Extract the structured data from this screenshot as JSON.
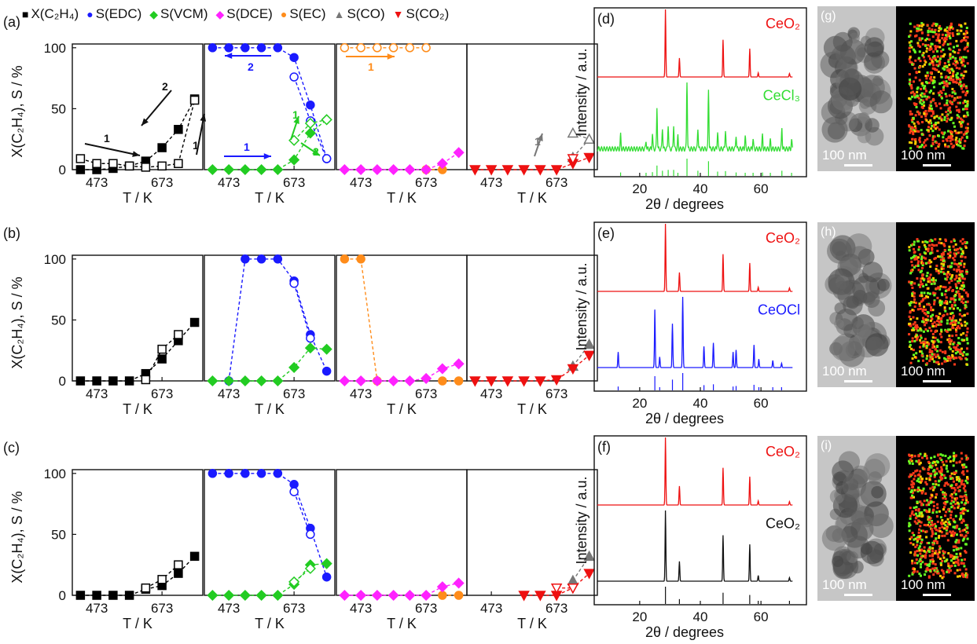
{
  "legend": [
    {
      "label": "X(C₂H₄)",
      "color": "#000000",
      "marker": "■"
    },
    {
      "label": "S(EDC)",
      "color": "#1a1aff",
      "marker": "●"
    },
    {
      "label": "S(VCM)",
      "color": "#22cc22",
      "marker": "◆"
    },
    {
      "label": "S(DCE)",
      "color": "#ff22ff",
      "marker": "◆"
    },
    {
      "label": "S(EC)",
      "color": "#ff8c1a",
      "marker": "●"
    },
    {
      "label": "S(CO)",
      "color": "#777777",
      "marker": "▲"
    },
    {
      "label": "S(CO₂)",
      "color": "#ee1111",
      "marker": "▼"
    }
  ],
  "colors": {
    "X": "#000000",
    "EDC": "#1a1aff",
    "VCM": "#22cc22",
    "DCE": "#ff22ff",
    "EC": "#ff8c1a",
    "CO": "#777777",
    "CO2": "#ee1111"
  },
  "row_labels": [
    "(a)",
    "(b)",
    "(c)"
  ],
  "ylabel": "X(C₂H₄), S / %",
  "xlabel": "T / K",
  "x_ticks": [
    "473",
    "673"
  ],
  "y_ticks": [
    "0",
    "50",
    "100"
  ],
  "xrd_labels": [
    "(d)",
    "(e)",
    "(f)"
  ],
  "xrd_ylabel": "Intensity / a.u.",
  "xrd_xlabel": "2θ / degrees",
  "xrd_x_ticks": [
    "20",
    "40",
    "60"
  ],
  "xrd_traces": [
    [
      {
        "name": "CeO₂",
        "color": "#ee1111"
      },
      {
        "name": "CeCl₃",
        "color": "#33dd33"
      }
    ],
    [
      {
        "name": "CeO₂",
        "color": "#ee1111"
      },
      {
        "name": "CeOCl",
        "color": "#1a1aff"
      }
    ],
    [
      {
        "name": "CeO₂",
        "color": "#ee1111"
      },
      {
        "name": "CeO₂",
        "color": "#111111"
      }
    ]
  ],
  "tem_labels": [
    "(g)",
    "(h)",
    "(i)"
  ],
  "scale_label": "100 nm",
  "arrow_labels": {
    "one": "1",
    "two": "2"
  },
  "chart_data": [
    {
      "type": "line",
      "panel": "a",
      "xlabel": "T / K",
      "ylabel": "X(C₂H₄), S / %",
      "xlim": [
        398,
        798
      ],
      "ylim": [
        0,
        100
      ],
      "x_ticks": [
        473,
        673
      ],
      "series": [
        {
          "key": "X",
          "marker": "square",
          "filled": true,
          "sub": 0,
          "x": [
            423,
            473,
            523,
            573,
            623,
            673,
            723,
            773
          ],
          "y": [
            0,
            0,
            1,
            3,
            7,
            18,
            33,
            58
          ]
        },
        {
          "key": "X",
          "marker": "square",
          "filled": false,
          "sub": 0,
          "x": [
            423,
            473,
            523,
            573,
            623,
            673,
            723,
            773
          ],
          "y": [
            9,
            5,
            5,
            3,
            2,
            3,
            5,
            57
          ]
        },
        {
          "key": "EDC",
          "marker": "circle",
          "filled": true,
          "sub": 1,
          "x": [
            423,
            473,
            523,
            573,
            623,
            673,
            723,
            773
          ],
          "y": [
            100,
            100,
            100,
            100,
            100,
            92,
            53,
            9
          ]
        },
        {
          "key": "EDC",
          "marker": "circle",
          "filled": false,
          "sub": 1,
          "x": [
            673,
            723,
            773
          ],
          "y": [
            76,
            40,
            9
          ]
        },
        {
          "key": "VCM",
          "marker": "diamond",
          "filled": true,
          "sub": 1,
          "x": [
            423,
            473,
            523,
            573,
            623,
            673,
            723,
            773
          ],
          "y": [
            0,
            0,
            0,
            0,
            0,
            8,
            30,
            41
          ]
        },
        {
          "key": "VCM",
          "marker": "diamond",
          "filled": false,
          "sub": 1,
          "x": [
            673,
            723,
            773
          ],
          "y": [
            24,
            38,
            41
          ]
        },
        {
          "key": "EC",
          "marker": "circle",
          "filled": false,
          "sub": 2,
          "x": [
            423,
            473,
            523,
            573,
            623,
            673
          ],
          "y": [
            100,
            100,
            100,
            100,
            100,
            100
          ]
        },
        {
          "key": "EC",
          "marker": "circle",
          "filled": true,
          "sub": 2,
          "x": [
            673,
            723
          ],
          "y": [
            0,
            0
          ]
        },
        {
          "key": "DCE",
          "marker": "diamond",
          "filled": true,
          "sub": 2,
          "x": [
            423,
            473,
            523,
            573,
            623,
            673,
            723,
            773
          ],
          "y": [
            0,
            0,
            0,
            0,
            0,
            0,
            5,
            14
          ]
        },
        {
          "key": "CO",
          "marker": "triangle-up",
          "filled": true,
          "sub": 3,
          "x": [
            723,
            773
          ],
          "y": [
            10,
            25
          ]
        },
        {
          "key": "CO",
          "marker": "triangle-up",
          "filled": false,
          "sub": 3,
          "x": [
            723,
            773
          ],
          "y": [
            30,
            25
          ]
        },
        {
          "key": "CO2",
          "marker": "triangle-down",
          "filled": true,
          "sub": 3,
          "x": [
            423,
            473,
            523,
            573,
            623,
            673,
            723,
            773
          ],
          "y": [
            0,
            0,
            0,
            0,
            0,
            0,
            5,
            10
          ]
        },
        {
          "key": "CO2",
          "marker": "triangle-down",
          "filled": false,
          "sub": 3,
          "x": [
            723
          ],
          "y": [
            9
          ]
        }
      ]
    },
    {
      "type": "line",
      "panel": "b",
      "xlabel": "T / K",
      "ylabel": "X(C₂H₄), S / %",
      "xlim": [
        398,
        798
      ],
      "ylim": [
        0,
        100
      ],
      "x_ticks": [
        473,
        673
      ],
      "series": [
        {
          "key": "X",
          "marker": "square",
          "filled": true,
          "sub": 0,
          "x": [
            423,
            473,
            523,
            573,
            623,
            673,
            723,
            773
          ],
          "y": [
            0,
            0,
            0,
            0,
            6,
            18,
            33,
            48
          ]
        },
        {
          "key": "X",
          "marker": "square",
          "filled": false,
          "sub": 0,
          "x": [
            623,
            673,
            723
          ],
          "y": [
            1,
            26,
            38
          ]
        },
        {
          "key": "EDC",
          "marker": "circle",
          "filled": true,
          "sub": 1,
          "x": [
            473,
            523,
            573,
            623,
            673,
            723,
            773
          ],
          "y": [
            0,
            100,
            100,
            100,
            82,
            38,
            8
          ]
        },
        {
          "key": "EDC",
          "marker": "circle",
          "filled": false,
          "sub": 1,
          "x": [
            673,
            723
          ],
          "y": [
            80,
            35
          ]
        },
        {
          "key": "VCM",
          "marker": "diamond",
          "filled": true,
          "sub": 1,
          "x": [
            423,
            473,
            523,
            573,
            623,
            673,
            723,
            773
          ],
          "y": [
            0,
            0,
            0,
            0,
            0,
            11,
            27,
            26
          ]
        },
        {
          "key": "EC",
          "marker": "circle",
          "filled": true,
          "sub": 2,
          "x": [
            423,
            473,
            523
          ],
          "y": [
            100,
            100,
            0
          ]
        },
        {
          "key": "EC",
          "marker": "circle",
          "filled": true,
          "sub": 2,
          "x": [
            723,
            773
          ],
          "y": [
            0,
            0
          ]
        },
        {
          "key": "DCE",
          "marker": "diamond",
          "filled": true,
          "sub": 2,
          "x": [
            423,
            473,
            523,
            573,
            623,
            673,
            723,
            773
          ],
          "y": [
            0,
            0,
            0,
            0,
            0,
            2,
            10,
            14
          ]
        },
        {
          "key": "CO",
          "marker": "triangle-up",
          "filled": true,
          "sub": 3,
          "x": [
            723,
            773
          ],
          "y": [
            12,
            30
          ]
        },
        {
          "key": "CO2",
          "marker": "triangle-down",
          "filled": true,
          "sub": 3,
          "x": [
            423,
            473,
            523,
            573,
            623,
            673,
            723,
            773
          ],
          "y": [
            0,
            0,
            0,
            0,
            0,
            1,
            10,
            21
          ]
        }
      ]
    },
    {
      "type": "line",
      "panel": "c",
      "xlabel": "T / K",
      "ylabel": "X(C₂H₄), S / %",
      "xlim": [
        398,
        798
      ],
      "ylim": [
        0,
        100
      ],
      "x_ticks": [
        473,
        673
      ],
      "series": [
        {
          "key": "X",
          "marker": "square",
          "filled": true,
          "sub": 0,
          "x": [
            423,
            473,
            523,
            573,
            623,
            673,
            723,
            773
          ],
          "y": [
            0,
            0,
            0,
            0,
            5,
            8,
            18,
            32
          ]
        },
        {
          "key": "X",
          "marker": "square",
          "filled": false,
          "sub": 0,
          "x": [
            623,
            673,
            723
          ],
          "y": [
            6,
            13,
            25
          ]
        },
        {
          "key": "EDC",
          "marker": "circle",
          "filled": true,
          "sub": 1,
          "x": [
            423,
            473,
            523,
            573,
            623,
            673,
            723,
            773
          ],
          "y": [
            100,
            100,
            100,
            100,
            100,
            91,
            55,
            15
          ]
        },
        {
          "key": "EDC",
          "marker": "circle",
          "filled": false,
          "sub": 1,
          "x": [
            673,
            723
          ],
          "y": [
            85,
            50
          ]
        },
        {
          "key": "VCM",
          "marker": "diamond",
          "filled": true,
          "sub": 1,
          "x": [
            423,
            473,
            523,
            573,
            623,
            673,
            723,
            773
          ],
          "y": [
            0,
            0,
            0,
            0,
            0,
            9,
            25,
            26
          ]
        },
        {
          "key": "VCM",
          "marker": "diamond",
          "filled": false,
          "sub": 1,
          "x": [
            673,
            723
          ],
          "y": [
            11,
            22
          ]
        },
        {
          "key": "EC",
          "marker": "circle",
          "filled": true,
          "sub": 2,
          "x": [
            723,
            773
          ],
          "y": [
            0,
            0
          ]
        },
        {
          "key": "DCE",
          "marker": "diamond",
          "filled": true,
          "sub": 2,
          "x": [
            423,
            473,
            523,
            573,
            623,
            673,
            723,
            773
          ],
          "y": [
            0,
            0,
            0,
            0,
            0,
            0,
            7,
            10
          ]
        },
        {
          "key": "CO",
          "marker": "triangle-up",
          "filled": true,
          "sub": 3,
          "x": [
            723,
            773
          ],
          "y": [
            12,
            32
          ]
        },
        {
          "key": "CO2",
          "marker": "triangle-down",
          "filled": true,
          "sub": 3,
          "x": [
            573,
            623,
            673,
            723,
            773
          ],
          "y": [
            0,
            0,
            0,
            6,
            18
          ]
        },
        {
          "key": "CO2",
          "marker": "triangle-down",
          "filled": false,
          "sub": 3,
          "x": [
            673,
            723
          ],
          "y": [
            6,
            6
          ]
        }
      ]
    },
    {
      "type": "line",
      "panel": "d",
      "xlabel": "2θ / degrees",
      "ylabel": "Intensity / a.u.",
      "xlim": [
        5,
        75
      ],
      "x_ticks": [
        20,
        40,
        60
      ],
      "series": [
        {
          "name": "CeO₂",
          "peaks": [
            [
              28.5,
              100
            ],
            [
              33.1,
              28
            ],
            [
              47.5,
              55
            ],
            [
              56.3,
              42
            ],
            [
              59.1,
              6
            ],
            [
              69.4,
              5
            ]
          ]
        },
        {
          "name": "CeCl₃",
          "peaks": [
            [
              13.7,
              20
            ],
            [
              22.1,
              12
            ],
            [
              24.2,
              22
            ],
            [
              25.7,
              60
            ],
            [
              27.5,
              30
            ],
            [
              29.4,
              35
            ],
            [
              31.2,
              35
            ],
            [
              32.6,
              18
            ],
            [
              35.6,
              100
            ],
            [
              39.2,
              30
            ],
            [
              42.7,
              85
            ],
            [
              45.7,
              25
            ],
            [
              48.3,
              28
            ],
            [
              51.8,
              20
            ],
            [
              54.8,
              18
            ],
            [
              57.4,
              15
            ],
            [
              60.5,
              20
            ],
            [
              63.1,
              12
            ],
            [
              66.9,
              30
            ],
            [
              70.1,
              12
            ]
          ]
        }
      ]
    },
    {
      "type": "line",
      "panel": "e",
      "xlabel": "2θ / degrees",
      "ylabel": "Intensity / a.u.",
      "xlim": [
        5,
        75
      ],
      "x_ticks": [
        20,
        40,
        60
      ],
      "series": [
        {
          "name": "CeO₂",
          "peaks": [
            [
              28.5,
              100
            ],
            [
              33.1,
              28
            ],
            [
              47.5,
              55
            ],
            [
              56.3,
              42
            ],
            [
              59.1,
              6
            ],
            [
              69.4,
              5
            ]
          ]
        },
        {
          "name": "CeOCl",
          "peaks": [
            [
              12.9,
              22
            ],
            [
              25.0,
              82
            ],
            [
              26.6,
              15
            ],
            [
              30.8,
              62
            ],
            [
              34.2,
              100
            ],
            [
              41.2,
              30
            ],
            [
              44.3,
              35
            ],
            [
              50.8,
              22
            ],
            [
              51.8,
              25
            ],
            [
              57.7,
              32
            ],
            [
              59.3,
              12
            ],
            [
              63.9,
              10
            ],
            [
              66.8,
              6
            ]
          ]
        }
      ]
    },
    {
      "type": "line",
      "panel": "f",
      "xlabel": "2θ / degrees",
      "ylabel": "Intensity / a.u.",
      "xlim": [
        5,
        75
      ],
      "x_ticks": [
        20,
        40,
        60
      ],
      "series": [
        {
          "name": "CeO₂",
          "peaks": [
            [
              28.5,
              100
            ],
            [
              33.1,
              28
            ],
            [
              47.5,
              55
            ],
            [
              56.3,
              42
            ],
            [
              59.1,
              6
            ],
            [
              69.4,
              5
            ]
          ]
        },
        {
          "name": "CeO₂",
          "peaks": [
            [
              28.5,
              100
            ],
            [
              33.1,
              28
            ],
            [
              47.5,
              65
            ],
            [
              56.3,
              52
            ],
            [
              59.1,
              8
            ],
            [
              69.4,
              5
            ]
          ]
        }
      ]
    }
  ]
}
